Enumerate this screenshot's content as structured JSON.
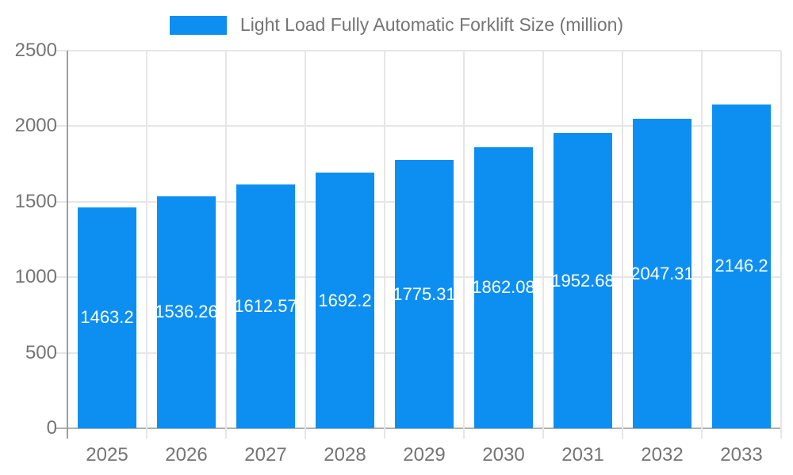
{
  "legend": {
    "series_label": "Light Load Fully Automatic Forklift Size (million)"
  },
  "chart_data": {
    "type": "bar",
    "title": "Light Load Fully Automatic Forklift Size (million)",
    "categories": [
      "2025",
      "2026",
      "2027",
      "2028",
      "2029",
      "2030",
      "2031",
      "2032",
      "2033"
    ],
    "series": [
      {
        "name": "Light Load Fully Automatic Forklift Size (million)",
        "values": [
          1463.2,
          1536.26,
          1612.57,
          1692.2,
          1775.31,
          1862.08,
          1952.68,
          2047.31,
          2146.2
        ]
      }
    ],
    "value_labels": [
      "1463.2",
      "1536.26",
      "1612.57",
      "1692.2",
      "1775.31",
      "1862.08",
      "1952.68",
      "2047.31",
      "2146.2"
    ],
    "xlabel": "",
    "ylabel": "",
    "ylim": [
      0,
      2500
    ],
    "yticks": [
      0,
      500,
      1000,
      1500,
      2000,
      2500
    ],
    "grid": true,
    "legend_position": "top",
    "bar_labels_inside": true,
    "colors": {
      "bar": "#0d8ff2",
      "bar_label": "#ffffff",
      "axis_text": "#757575",
      "gridline": "#e6e6e6",
      "axis_line": "#9e9e9e",
      "baseline": "#b0b0b0",
      "background": "#ffffff"
    }
  }
}
